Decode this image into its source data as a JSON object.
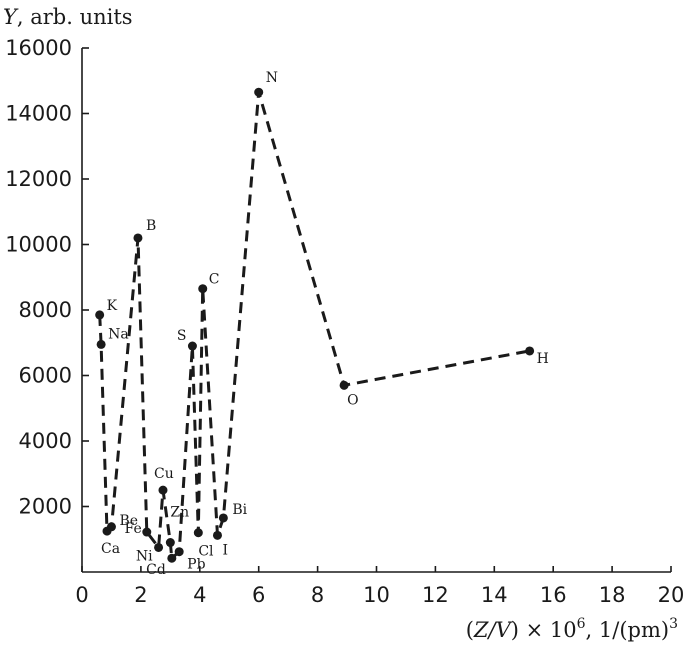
{
  "chart_data": {
    "type": "line",
    "ylabel_italic": "Y",
    "ylabel_rest": ", arb. units",
    "xlabel_paren_open": "(",
    "xlabel_var": "Z/V",
    "xlabel_times": ") × 10",
    "xlabel_exp": "6",
    "xlabel_units": ", 1/(pm)",
    "xlabel_units_exp": "3",
    "xlim": [
      0,
      20
    ],
    "ylim": [
      0,
      16000
    ],
    "x_ticks": [
      "0",
      "2",
      "4",
      "6",
      "8",
      "10",
      "12",
      "14",
      "16",
      "18",
      "20"
    ],
    "y_ticks": [
      "2000",
      "4000",
      "6000",
      "8000",
      "10000",
      "12000",
      "14000",
      "16000"
    ],
    "x_tick_values": [
      0,
      2,
      4,
      6,
      8,
      10,
      12,
      14,
      16,
      18,
      20
    ],
    "y_tick_values": [
      2000,
      4000,
      6000,
      8000,
      10000,
      12000,
      14000,
      16000
    ],
    "series": [
      {
        "points": [
          {
            "label": "K",
            "x": 0.6,
            "y": 7850
          },
          {
            "label": "Na",
            "x": 0.65,
            "y": 6950
          },
          {
            "label": "Ca",
            "x": 0.85,
            "y": 1250
          },
          {
            "label": "Be",
            "x": 1.0,
            "y": 1380
          },
          {
            "label": "B",
            "x": 1.9,
            "y": 10200
          },
          {
            "label": "Fe",
            "x": 2.2,
            "y": 1220
          },
          {
            "label": "Ni",
            "x": 2.6,
            "y": 750
          },
          {
            "label": "Cu",
            "x": 2.75,
            "y": 2500
          },
          {
            "label": "Zn",
            "x": 3.0,
            "y": 900
          },
          {
            "label": "Cd",
            "x": 3.05,
            "y": 420
          },
          {
            "label": "Pb",
            "x": 3.3,
            "y": 620
          },
          {
            "label": "S",
            "x": 3.75,
            "y": 6900
          },
          {
            "label": "Cl",
            "x": 3.95,
            "y": 1200
          },
          {
            "label": "C",
            "x": 4.1,
            "y": 8650
          },
          {
            "label": "I",
            "x": 4.6,
            "y": 1120
          },
          {
            "label": "Bi",
            "x": 4.8,
            "y": 1650
          },
          {
            "label": "N",
            "x": 6.0,
            "y": 14650
          },
          {
            "label": "O",
            "x": 8.9,
            "y": 5700
          },
          {
            "label": "H",
            "x": 15.2,
            "y": 6750
          }
        ]
      }
    ]
  }
}
